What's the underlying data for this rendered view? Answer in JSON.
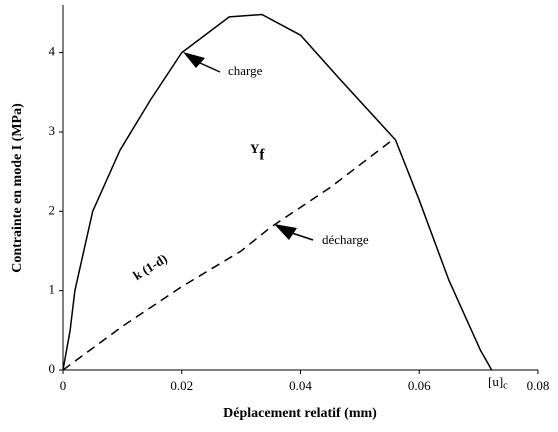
{
  "chart_data": {
    "type": "line",
    "x_label": "Déplacement relatif (mm)",
    "y_label": "Contrainte en mode I (MPa)",
    "xlim": [
      0,
      0.08
    ],
    "ylim": [
      0,
      4.6
    ],
    "xticks": [
      0,
      0.02,
      0.04,
      0.06,
      0.08
    ],
    "yticks": [
      0,
      1,
      2,
      3,
      4
    ],
    "grid": false,
    "series": [
      {
        "name": "charge",
        "color": "#000000",
        "dash": false,
        "x": [
          0,
          0.0012,
          0.002,
          0.005,
          0.0096,
          0.0147,
          0.02,
          0.028,
          0.0335,
          0.04,
          0.0467,
          0.056,
          0.06,
          0.065,
          0.0703,
          0.0722
        ],
        "values": [
          0,
          0.5,
          1.0,
          2.0,
          2.77,
          3.4,
          4.0,
          4.45,
          4.48,
          4.22,
          3.66,
          2.9,
          2.14,
          1.13,
          0.25,
          0
        ]
      },
      {
        "name": "décharge",
        "color": "#000000",
        "dash": true,
        "x": [
          0,
          0.01,
          0.02,
          0.03,
          0.035,
          0.045,
          0.0555
        ],
        "values": [
          0,
          0.55,
          1.05,
          1.5,
          1.8,
          2.3,
          2.9
        ]
      }
    ],
    "annotations": [
      {
        "text": "Y",
        "sub": "f"
      },
      {
        "text": "k (1-d)"
      },
      {
        "text": "[u]",
        "sub": "c"
      }
    ]
  }
}
